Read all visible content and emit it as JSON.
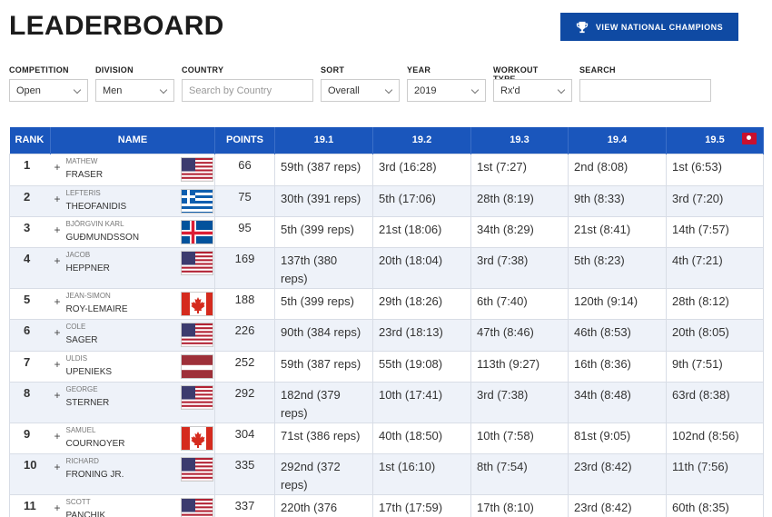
{
  "header": {
    "title": "LEADERBOARD",
    "champions_button": "VIEW NATIONAL CHAMPIONS"
  },
  "filters": [
    {
      "label": "COMPETITION",
      "value": "Open",
      "type": "select"
    },
    {
      "label": "DIVISION",
      "value": "Men",
      "type": "select"
    },
    {
      "label": "COUNTRY",
      "placeholder": "Search by Country",
      "type": "input"
    },
    {
      "label": "SORT",
      "value": "Overall",
      "type": "select"
    },
    {
      "label": "YEAR",
      "value": "2019",
      "type": "select"
    },
    {
      "label": "WORKOUT TYPE",
      "value": "Rx'd",
      "type": "select"
    },
    {
      "label": "SEARCH",
      "value": "",
      "type": "input"
    }
  ],
  "table": {
    "headers": [
      "RANK",
      "NAME",
      "POINTS",
      "19.1",
      "19.2",
      "19.3",
      "19.4",
      "19.5"
    ],
    "rows": [
      {
        "rank": "1",
        "first": "MATHEW",
        "last": "FRASER",
        "country": "us",
        "points": "66",
        "scores": [
          "59th (387 reps)",
          "3rd (16:28)",
          "1st (7:27)",
          "2nd (8:08)",
          "1st (6:53)"
        ],
        "video": true
      },
      {
        "rank": "2",
        "first": "LEFTERIS",
        "last": "THEOFANIDIS",
        "country": "gr",
        "points": "75",
        "scores": [
          "30th (391 reps)",
          "5th (17:06)",
          "28th (8:19)",
          "9th (8:33)",
          "3rd (7:20)"
        ]
      },
      {
        "rank": "3",
        "first": "BJÖRGVIN KARL",
        "last": "GUÐMUNDSSON",
        "country": "is",
        "points": "95",
        "scores": [
          "5th (399 reps)",
          "21st (18:06)",
          "34th (8:29)",
          "21st (8:41)",
          "14th (7:57)"
        ]
      },
      {
        "rank": "4",
        "first": "JACOB",
        "last": "HEPPNER",
        "country": "us",
        "points": "169",
        "scores": [
          "137th (380 reps)",
          "20th (18:04)",
          "3rd (7:38)",
          "5th (8:23)",
          "4th (7:21)"
        ]
      },
      {
        "rank": "5",
        "first": "JEAN-SIMON",
        "last": "ROY-LEMAIRE",
        "country": "ca",
        "points": "188",
        "scores": [
          "5th (399 reps)",
          "29th (18:26)",
          "6th (7:40)",
          "120th (9:14)",
          "28th (8:12)"
        ]
      },
      {
        "rank": "6",
        "first": "COLE",
        "last": "SAGER",
        "country": "us",
        "points": "226",
        "scores": [
          "90th (384 reps)",
          "23rd (18:13)",
          "47th (8:46)",
          "46th (8:53)",
          "20th (8:05)"
        ]
      },
      {
        "rank": "7",
        "first": "ULDIS",
        "last": "UPENIEKS",
        "country": "lv",
        "points": "252",
        "scores": [
          "59th (387 reps)",
          "55th (19:08)",
          "113th (9:27)",
          "16th (8:36)",
          "9th (7:51)"
        ]
      },
      {
        "rank": "8",
        "first": "GEORGE",
        "last": "STERNER",
        "country": "us",
        "points": "292",
        "scores": [
          "182nd (379 reps)",
          "10th (17:41)",
          "3rd (7:38)",
          "34th (8:48)",
          "63rd (8:38)"
        ]
      },
      {
        "rank": "9",
        "first": "SAMUEL",
        "last": "COURNOYER",
        "country": "ca",
        "points": "304",
        "scores": [
          "71st (386 reps)",
          "40th (18:50)",
          "10th (7:58)",
          "81st (9:05)",
          "102nd (8:56)"
        ]
      },
      {
        "rank": "10",
        "first": "RICHARD",
        "last": "FRONING JR.",
        "country": "us",
        "points": "335",
        "scores": [
          "292nd (372 reps)",
          "1st (16:10)",
          "8th (7:54)",
          "23rd (8:42)",
          "11th (7:56)"
        ]
      },
      {
        "rank": "11",
        "first": "SCOTT",
        "last": "PANCHIK",
        "country": "us",
        "points": "337",
        "scores": [
          "220th (376 reps)",
          "17th (17:59)",
          "17th (8:10)",
          "23rd (8:42)",
          "60th (8:35)"
        ]
      }
    ]
  },
  "colors": {
    "primary": "#1a56bc",
    "button": "#0f4aa3",
    "row_alt": "#eef2f9"
  }
}
